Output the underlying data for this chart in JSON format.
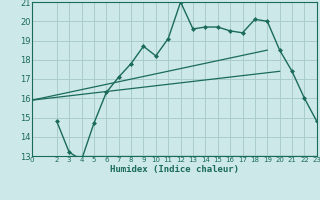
{
  "bg_color": "#cce8e8",
  "grid_color": "#aacccc",
  "line_color": "#1a6b5a",
  "xlabel": "Humidex (Indice chaleur)",
  "xlim": [
    0,
    23
  ],
  "ylim": [
    13,
    21
  ],
  "yticks": [
    13,
    14,
    15,
    16,
    17,
    18,
    19,
    20,
    21
  ],
  "xticks": [
    0,
    2,
    3,
    4,
    5,
    6,
    7,
    8,
    9,
    10,
    11,
    12,
    13,
    14,
    15,
    16,
    17,
    18,
    19,
    20,
    21,
    22,
    23
  ],
  "line1_x": [
    2,
    3,
    4,
    5,
    6,
    7,
    8,
    9,
    10,
    11,
    12,
    13,
    14,
    15,
    16,
    17,
    18,
    19,
    20,
    21,
    22,
    23
  ],
  "line1_y": [
    14.8,
    13.2,
    12.8,
    14.7,
    16.3,
    17.1,
    17.8,
    18.7,
    18.2,
    19.1,
    21.0,
    19.6,
    19.7,
    19.7,
    19.5,
    19.4,
    20.1,
    20.0,
    18.5,
    17.4,
    16.0,
    14.8
  ],
  "line2_x": [
    0,
    19
  ],
  "line2_y": [
    15.9,
    18.5
  ],
  "line3_x": [
    0,
    20
  ],
  "line3_y": [
    15.9,
    17.4
  ],
  "line4_x": [
    3,
    10,
    19,
    23
  ],
  "line4_y": [
    13.0,
    13.0,
    13.0,
    13.0
  ]
}
